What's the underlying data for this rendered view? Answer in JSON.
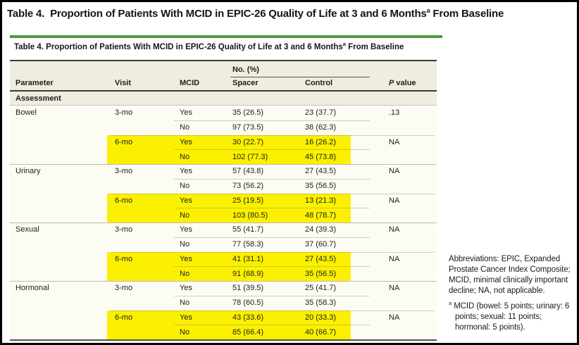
{
  "page": {
    "outer_title": {
      "pre": "Table 4.  Proportion of Patients With MCID in EPIC-26 Quality of Life at 3 and 6 Months",
      "sup": "a",
      "post": " From Baseline"
    }
  },
  "table": {
    "title": {
      "pre": "Table 4. Proportion of Patients With MCID in EPIC-26 Quality of Life at 3 and 6 Months",
      "sup": "a",
      "post": " From Baseline"
    },
    "columns": {
      "parameter": "Parameter",
      "visit": "Visit",
      "mcid": "MCID",
      "group": "No. (%)",
      "spacer": "Spacer",
      "control": "Control",
      "p_italic": "P",
      "p_rest": " value"
    },
    "section_label": "Assessment",
    "accent_green": "#4a9b3d",
    "highlight_color": "#fbf000",
    "header_background": "#efece0",
    "rows": [
      {
        "parameter": "Bowel",
        "visit": "3-mo",
        "mcid": "Yes",
        "spacer": "35 (26.5)",
        "control": "23 (37.7)",
        "p_value": ".13",
        "highlighted": false
      },
      {
        "mcid": "No",
        "spacer": "97 (73.5)",
        "control": "38 (62.3)",
        "highlighted": false
      },
      {
        "visit": "6-mo",
        "mcid": "Yes",
        "spacer": "30 (22.7)",
        "control": "16 (26.2)",
        "p_value": "NA",
        "highlighted": true
      },
      {
        "mcid": "No",
        "spacer": "102 (77.3)",
        "control": "45 (73.8)",
        "highlighted": true
      },
      {
        "parameter": "Urinary",
        "visit": "3-mo",
        "mcid": "Yes",
        "spacer": "57 (43.8)",
        "control": "27 (43.5)",
        "p_value": "NA",
        "highlighted": false
      },
      {
        "mcid": "No",
        "spacer": "73 (56.2)",
        "control": "35 (56.5)",
        "highlighted": false
      },
      {
        "visit": "6-mo",
        "mcid": "Yes",
        "spacer": "25 (19.5)",
        "control": "13 (21.3)",
        "p_value": "NA",
        "highlighted": true
      },
      {
        "mcid": "No",
        "spacer": "103 (80.5)",
        "control": "48 (78.7)",
        "highlighted": true
      },
      {
        "parameter": "Sexual",
        "visit": "3-mo",
        "mcid": "Yes",
        "spacer": "55 (41.7)",
        "control": "24 (39.3)",
        "p_value": "NA",
        "highlighted": false
      },
      {
        "mcid": "No",
        "spacer": "77 (58.3)",
        "control": "37 (60.7)",
        "highlighted": false
      },
      {
        "visit": "6-mo",
        "mcid": "Yes",
        "spacer": "41 (31.1)",
        "control": "27 (43.5)",
        "p_value": "NA",
        "highlighted": true
      },
      {
        "mcid": "No",
        "spacer": "91 (68.9)",
        "control": "35 (56.5)",
        "highlighted": true
      },
      {
        "parameter": "Hormonal",
        "visit": "3-mo",
        "mcid": "Yes",
        "spacer": "51 (39.5)",
        "control": "25 (41.7)",
        "p_value": "NA",
        "highlighted": false
      },
      {
        "mcid": "No",
        "spacer": "78 (60.5)",
        "control": "35 (58.3)",
        "highlighted": false
      },
      {
        "visit": "6-mo",
        "mcid": "Yes",
        "spacer": "43 (33.6)",
        "control": "20 (33.3)",
        "p_value": "NA",
        "highlighted": true
      },
      {
        "mcid": "No",
        "spacer": "85 (66.4)",
        "control": "40 (66.7)",
        "highlighted": true
      }
    ]
  },
  "footnotes": {
    "abbreviations": "Abbreviations: EPIC, Expanded Prostate Cancer Index Composite; MCID, minimal clinically important decline; NA, not applicable.",
    "a_marker": "a",
    "a_text": "MCID (bowel: 5 points; urinary: 6 points; sexual: 11 points; hormonal: 5 points)."
  }
}
